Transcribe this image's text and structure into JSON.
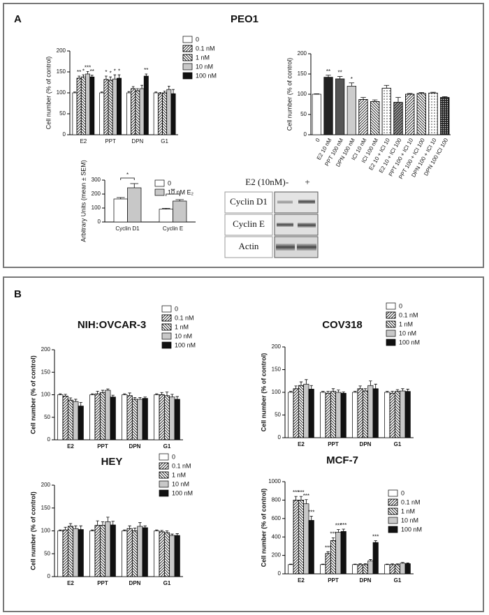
{
  "panel_a": {
    "label": "A",
    "title": "PEO1"
  },
  "panel_b": {
    "label": "B"
  },
  "blot": {
    "treatment": "E2 (10nM)",
    "lanes": [
      "-",
      "+"
    ],
    "rows": [
      "Cyclin D1",
      "Cyclin E",
      "Actin"
    ]
  },
  "chart_data": [
    {
      "type": "bar",
      "y_label": "Cell number (% of control)",
      "categories": [
        "E2",
        "PPT",
        "DPN",
        "G1"
      ],
      "ylim": [
        0,
        200
      ],
      "yticks": [
        0,
        50,
        100,
        150,
        200
      ],
      "series": [
        {
          "name": "0",
          "color": "#ffffff",
          "pattern": null,
          "values": [
            100,
            100,
            100,
            100
          ],
          "errors": [
            2,
            2,
            3,
            2
          ],
          "significance": [
            null,
            null,
            null,
            null
          ]
        },
        {
          "name": "0.1 nM",
          "color": "#ffffff",
          "pattern": "hatch-up",
          "values": [
            135,
            132,
            110,
            98
          ],
          "errors": [
            5,
            8,
            5,
            3
          ],
          "significance": [
            "**",
            "*",
            null,
            null
          ]
        },
        {
          "name": "1 nM",
          "color": "#ffffff",
          "pattern": "hatch-down",
          "values": [
            138,
            130,
            105,
            100
          ],
          "errors": [
            5,
            8,
            5,
            4
          ],
          "significance": [
            "*",
            "*",
            null,
            null
          ]
        },
        {
          "name": "10 nM",
          "color": "#c8c8c8",
          "pattern": null,
          "values": [
            145,
            133,
            110,
            108
          ],
          "errors": [
            6,
            10,
            8,
            8
          ],
          "significance": [
            "***",
            "*",
            null,
            null
          ]
        },
        {
          "name": "100 nM",
          "color": "#111111",
          "pattern": null,
          "values": [
            138,
            135,
            140,
            98
          ],
          "errors": [
            4,
            8,
            5,
            10
          ],
          "significance": [
            "**",
            "*",
            "**",
            null
          ]
        }
      ]
    },
    {
      "type": "bar",
      "y_label": "Cell number (% of control)",
      "categories": [
        "0",
        "E2 10 nM",
        "PPT 100 nM",
        "DPN 100 nM",
        "ICI 10 nM",
        "ICI 100 nM",
        "E2 10 + ICI 10",
        "E2 10 + ICI 100",
        "PPT 100 + ICI 10",
        "PPT 100 + ICI 100",
        "DPN 100 + ICI 10",
        "DPN 100 ICI 100"
      ],
      "ylim": [
        0,
        200
      ],
      "yticks": [
        0,
        50,
        100,
        150,
        200
      ],
      "values": [
        100,
        142,
        138,
        120,
        87,
        82,
        115,
        80,
        100,
        102,
        103,
        92
      ],
      "errors": [
        1,
        5,
        6,
        8,
        5,
        4,
        7,
        12,
        2,
        2,
        2,
        2
      ],
      "significance": [
        null,
        "**",
        "**",
        "*",
        null,
        null,
        null,
        null,
        null,
        null,
        null,
        null
      ],
      "colors": [
        "#ffffff",
        "#222222",
        "#555555",
        "#cccccc",
        "#ffffff",
        "#ffffff",
        "#ffffff",
        "#999999",
        "#ffffff",
        "#ffffff",
        "#ffffff",
        "#ffffff"
      ],
      "patterns": [
        null,
        null,
        null,
        null,
        "hatch-up",
        "hatch-down",
        "dots",
        "hatch-up",
        "hatch-up",
        "hatch-down",
        "dots",
        "dense"
      ]
    },
    {
      "type": "bar",
      "y_label": "Arbitrary Units (mean ± SEM)",
      "categories": [
        "Cyclin D1",
        "Cyclin E"
      ],
      "ylim": [
        0,
        300
      ],
      "yticks": [
        0,
        100,
        200,
        300
      ],
      "comparisons": [
        "*",
        "**"
      ],
      "series": [
        {
          "name": "0",
          "color": "#ffffff",
          "pattern": null,
          "values": [
            165,
            92
          ],
          "errors": [
            10,
            6
          ],
          "significance": [
            null,
            null
          ]
        },
        {
          "name": "10 nM E₂",
          "color": "#c8c8c8",
          "pattern": null,
          "values": [
            245,
            150
          ],
          "errors": [
            30,
            10
          ],
          "significance": [
            null,
            null
          ]
        }
      ]
    },
    {
      "type": "bar",
      "title": "NIH:OVCAR-3",
      "y_label": "Cell number (% of control)",
      "categories": [
        "E2",
        "PPT",
        "DPN",
        "G1"
      ],
      "ylim": [
        0,
        200
      ],
      "yticks": [
        0,
        50,
        100,
        150,
        200
      ],
      "series": [
        {
          "name": "0",
          "color": "#ffffff",
          "pattern": null,
          "values": [
            100,
            100,
            100,
            100
          ],
          "errors": [
            2,
            2,
            2,
            2
          ],
          "significance": [
            null,
            null,
            null,
            null
          ]
        },
        {
          "name": "0.1 nM",
          "color": "#ffffff",
          "pattern": "hatch-up",
          "values": [
            97,
            102,
            98,
            100
          ],
          "errors": [
            4,
            6,
            6,
            5
          ],
          "significance": [
            null,
            null,
            null,
            null
          ]
        },
        {
          "name": "1 nM",
          "color": "#ffffff",
          "pattern": "hatch-down",
          "values": [
            88,
            105,
            90,
            98
          ],
          "errors": [
            5,
            5,
            4,
            8
          ],
          "significance": [
            null,
            null,
            null,
            null
          ]
        },
        {
          "name": "10 nM",
          "color": "#c8c8c8",
          "pattern": null,
          "values": [
            85,
            110,
            90,
            95
          ],
          "errors": [
            5,
            3,
            4,
            6
          ],
          "significance": [
            null,
            null,
            null,
            null
          ]
        },
        {
          "name": "100 nM",
          "color": "#111111",
          "pattern": null,
          "values": [
            75,
            95,
            92,
            90
          ],
          "errors": [
            8,
            4,
            3,
            6
          ],
          "significance": [
            null,
            null,
            null,
            null
          ]
        }
      ]
    },
    {
      "type": "bar",
      "title": "COV318",
      "y_label": "Cell number (% of control)",
      "categories": [
        "E2",
        "PPT",
        "DPN",
        "G1"
      ],
      "ylim": [
        0,
        200
      ],
      "yticks": [
        0,
        50,
        100,
        150,
        200
      ],
      "series": [
        {
          "name": "0",
          "color": "#ffffff",
          "pattern": null,
          "values": [
            100,
            100,
            100,
            100
          ],
          "errors": [
            2,
            2,
            2,
            2
          ],
          "significance": [
            null,
            null,
            null,
            null
          ]
        },
        {
          "name": "0.1 nM",
          "color": "#ffffff",
          "pattern": "hatch-up",
          "values": [
            108,
            98,
            108,
            98
          ],
          "errors": [
            6,
            4,
            6,
            4
          ],
          "significance": [
            null,
            null,
            null,
            null
          ]
        },
        {
          "name": "1 nM",
          "color": "#ffffff",
          "pattern": "hatch-down",
          "values": [
            115,
            102,
            103,
            102
          ],
          "errors": [
            8,
            6,
            5,
            4
          ],
          "significance": [
            null,
            null,
            null,
            null
          ]
        },
        {
          "name": "10 nM",
          "color": "#c8c8c8",
          "pattern": null,
          "values": [
            118,
            100,
            115,
            103
          ],
          "errors": [
            10,
            5,
            10,
            5
          ],
          "significance": [
            null,
            null,
            null,
            null
          ]
        },
        {
          "name": "100 nM",
          "color": "#111111",
          "pattern": null,
          "values": [
            107,
            98,
            108,
            102
          ],
          "errors": [
            8,
            3,
            10,
            5
          ],
          "significance": [
            null,
            null,
            null,
            null
          ]
        }
      ]
    },
    {
      "type": "bar",
      "title": "HEY",
      "y_label": "Cell number (% of control)",
      "categories": [
        "E2",
        "PPT",
        "DPN",
        "G1"
      ],
      "ylim": [
        0,
        200
      ],
      "yticks": [
        0,
        50,
        100,
        150,
        200
      ],
      "series": [
        {
          "name": "0",
          "color": "#ffffff",
          "pattern": null,
          "values": [
            100,
            100,
            100,
            100
          ],
          "errors": [
            2,
            2,
            2,
            2
          ],
          "significance": [
            null,
            null,
            null,
            null
          ]
        },
        {
          "name": "0.1 nM",
          "color": "#ffffff",
          "pattern": "hatch-up",
          "values": [
            102,
            112,
            105,
            98
          ],
          "errors": [
            6,
            10,
            6,
            3
          ],
          "significance": [
            null,
            null,
            null,
            null
          ]
        },
        {
          "name": "1 nM",
          "color": "#ffffff",
          "pattern": "hatch-down",
          "values": [
            110,
            112,
            100,
            96
          ],
          "errors": [
            6,
            8,
            6,
            4
          ],
          "significance": [
            null,
            null,
            null,
            null
          ]
        },
        {
          "name": "10 nM",
          "color": "#c8c8c8",
          "pattern": null,
          "values": [
            105,
            120,
            110,
            90
          ],
          "errors": [
            6,
            10,
            8,
            3
          ],
          "significance": [
            null,
            null,
            null,
            null
          ]
        },
        {
          "name": "100 nM",
          "color": "#111111",
          "pattern": null,
          "values": [
            103,
            113,
            107,
            90
          ],
          "errors": [
            8,
            8,
            4,
            4
          ],
          "significance": [
            null,
            null,
            null,
            null
          ]
        }
      ]
    },
    {
      "type": "bar",
      "title": "MCF-7",
      "y_label": "Cell number (% of control)",
      "categories": [
        "E2",
        "PPT",
        "DPN",
        "G1"
      ],
      "ylim": [
        0,
        1000
      ],
      "yticks": [
        0,
        200,
        400,
        600,
        800,
        1000
      ],
      "series": [
        {
          "name": "0",
          "color": "#ffffff",
          "pattern": null,
          "values": [
            100,
            100,
            100,
            100
          ],
          "errors": [
            5,
            5,
            5,
            5
          ],
          "significance": [
            null,
            null,
            null,
            null
          ]
        },
        {
          "name": "0.1 nM",
          "color": "#ffffff",
          "pattern": "hatch-up",
          "values": [
            800,
            220,
            100,
            100
          ],
          "errors": [
            40,
            20,
            10,
            8
          ],
          "significance": [
            "***",
            "***",
            null,
            null
          ]
        },
        {
          "name": "1 nM",
          "color": "#ffffff",
          "pattern": "hatch-down",
          "values": [
            800,
            360,
            100,
            100
          ],
          "errors": [
            40,
            30,
            10,
            8
          ],
          "significance": [
            "***",
            "***",
            null,
            null
          ]
        },
        {
          "name": "10 nM",
          "color": "#c8c8c8",
          "pattern": null,
          "values": [
            760,
            450,
            140,
            115
          ],
          "errors": [
            45,
            30,
            15,
            8
          ],
          "significance": [
            "***",
            "***",
            null,
            null
          ]
        },
        {
          "name": "100 nM",
          "color": "#111111",
          "pattern": null,
          "values": [
            580,
            460,
            340,
            110
          ],
          "errors": [
            45,
            25,
            20,
            8
          ],
          "significance": [
            "***",
            "***",
            "***",
            null
          ]
        }
      ]
    }
  ]
}
